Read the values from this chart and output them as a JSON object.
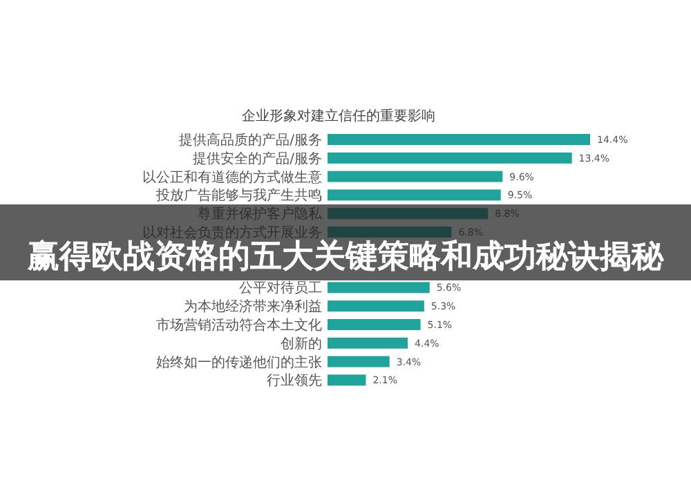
{
  "chart_data": {
    "type": "bar",
    "orientation": "horizontal",
    "title": "企业形象对建立信任的重要影响",
    "categories": [
      "提供高品质的产品/服务",
      "提供安全的产品/服务",
      "以公正和有道德的方式做生意",
      "投放广告能够与我产生共鸣",
      "尊重并保护客户隐私",
      "以对社会负责的方式开展业务",
      null,
      null,
      "公平对待员工",
      "为本地经济带来净利益",
      "市场营销活动符合本土文化",
      "创新的",
      "始终如一的传递他们的主张",
      "行业领先"
    ],
    "values": [
      14.4,
      13.4,
      9.6,
      9.5,
      8.8,
      6.8,
      null,
      null,
      5.6,
      5.3,
      5.1,
      4.4,
      3.4,
      2.1
    ],
    "value_labels": [
      "14.4%",
      "13.4%",
      "9.6%",
      "9.5%",
      "8.8%",
      "6.8%",
      null,
      null,
      "5.6%",
      "5.3%",
      "5.1%",
      "4.4%",
      "3.4%",
      "2.1%"
    ],
    "color": "#1fa39b",
    "annotations": [
      "赢得欧战资格的五大关键策略和成功秘诀揭秘"
    ]
  }
}
